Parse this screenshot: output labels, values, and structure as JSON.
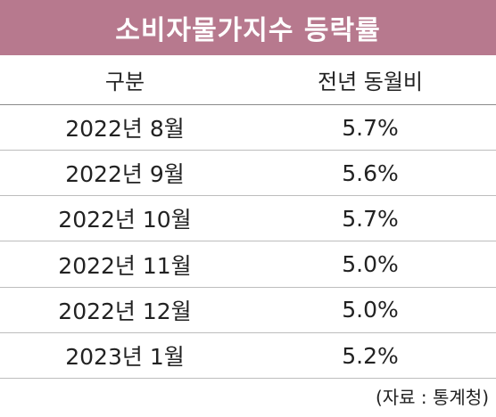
{
  "header": {
    "title": "소비자물가지수 등락률"
  },
  "table": {
    "columns": [
      "구분",
      "전년 동월비"
    ],
    "rows": [
      [
        "2022년 8월",
        "5.7%"
      ],
      [
        "2022년 9월",
        "5.6%"
      ],
      [
        "2022년 10월",
        "5.7%"
      ],
      [
        "2022년 11월",
        "5.0%"
      ],
      [
        "2022년 12월",
        "5.0%"
      ],
      [
        "2023년 1월",
        "5.2%"
      ]
    ]
  },
  "source": "(자료 : 통계청)"
}
